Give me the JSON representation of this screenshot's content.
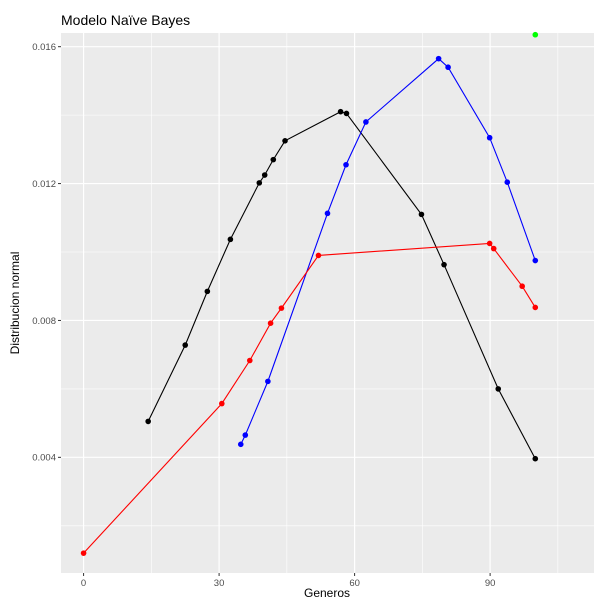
{
  "chart_data": {
    "type": "line",
    "title": "Modelo Naïve Bayes",
    "xlabel": "Generos",
    "ylabel": "Distribucion normal",
    "xlim": [
      -5,
      113
    ],
    "ylim": [
      0.00062,
      0.0164
    ],
    "grid": true,
    "x_ticks": [
      0,
      30,
      60,
      90
    ],
    "x_tick_labels": [
      "0",
      "30",
      "60",
      "90"
    ],
    "y_ticks": [
      0.004,
      0.008,
      0.012,
      0.016
    ],
    "y_tick_labels": [
      "0.004",
      "0.008",
      "0.012",
      "0.016"
    ],
    "series": [
      {
        "color": "#000000",
        "points": [
          [
            14.3,
            0.00505
          ],
          [
            22.5,
            0.00728
          ],
          [
            27.4,
            0.00885
          ],
          [
            32.5,
            0.01037
          ],
          [
            38.9,
            0.01202
          ],
          [
            40.1,
            0.01225
          ],
          [
            42.0,
            0.0127
          ],
          [
            44.6,
            0.01325
          ],
          [
            56.9,
            0.0141
          ],
          [
            58.2,
            0.01405
          ],
          [
            74.8,
            0.0111
          ],
          [
            79.8,
            0.00963
          ],
          [
            91.8,
            0.006
          ],
          [
            100.0,
            0.00396
          ]
        ]
      },
      {
        "color": "#0000ff",
        "points": [
          [
            34.8,
            0.00438
          ],
          [
            35.8,
            0.00465
          ],
          [
            40.8,
            0.00622
          ],
          [
            54.0,
            0.01113
          ],
          [
            58.1,
            0.01255
          ],
          [
            62.5,
            0.0138
          ],
          [
            78.6,
            0.01565
          ],
          [
            80.7,
            0.0154
          ],
          [
            89.9,
            0.01334
          ],
          [
            93.8,
            0.01204
          ],
          [
            100.0,
            0.00975
          ]
        ]
      },
      {
        "color": "#ff0000",
        "points": [
          [
            0.0,
            0.0012
          ],
          [
            30.6,
            0.00557
          ],
          [
            36.8,
            0.00683
          ],
          [
            41.4,
            0.00792
          ],
          [
            43.8,
            0.00836
          ],
          [
            52.0,
            0.0099
          ],
          [
            89.9,
            0.01025
          ],
          [
            90.8,
            0.0101
          ],
          [
            97.1,
            0.009
          ],
          [
            100.0,
            0.00838
          ]
        ]
      },
      {
        "color": "#00ff00",
        "points": [
          [
            100.0,
            0.01635
          ]
        ]
      }
    ]
  }
}
